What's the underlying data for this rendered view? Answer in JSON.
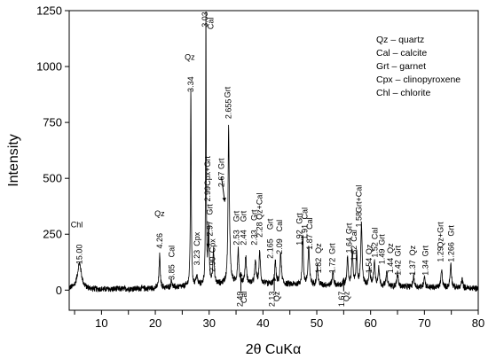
{
  "chart_data": {
    "type": "line",
    "xlabel": "2θ CuKα",
    "ylabel": "Intensity",
    "xlim": [
      4,
      80
    ],
    "ylim": [
      -90,
      1250
    ],
    "x_ticks": [
      5,
      10,
      15,
      20,
      25,
      30,
      35,
      40,
      45,
      50,
      55,
      60,
      65,
      70,
      75,
      80
    ],
    "y_ticks": [
      0,
      250,
      500,
      750,
      1000,
      1250
    ],
    "legend_position": "top-right",
    "legend": [
      "Qz – quartz",
      "Cal – calcite",
      "Grt – garnet",
      "Cpx – clinopyroxene",
      "Chl – chlorite"
    ],
    "background": {
      "points": [
        [
          4,
          5
        ],
        [
          10,
          3
        ],
        [
          20,
          8
        ],
        [
          25,
          14
        ],
        [
          30,
          22
        ],
        [
          36,
          30
        ],
        [
          42,
          26
        ],
        [
          48,
          24
        ],
        [
          55,
          20
        ],
        [
          60,
          19
        ],
        [
          70,
          12
        ],
        [
          80,
          8
        ]
      ],
      "noise_amplitude": 16
    },
    "peaks": [
      {
        "x": 5.9,
        "y": 115,
        "w": 0.9
      },
      {
        "x": 20.8,
        "y": 150,
        "w": 0.25
      },
      {
        "x": 23.0,
        "y": 35,
        "w": 0.25
      },
      {
        "x": 26.6,
        "y": 880,
        "w": 0.17
      },
      {
        "x": 27.7,
        "y": 40,
        "w": 0.35
      },
      {
        "x": 29.4,
        "y": 1240,
        "w": 0.13
      },
      {
        "x": 29.9,
        "y": 260,
        "w": 0.25
      },
      {
        "x": 30.8,
        "y": 150,
        "w": 0.3
      },
      {
        "x": 33.6,
        "y": 470,
        "w": 0.2
      },
      {
        "x": 33.7,
        "y": 300,
        "w": 0.35
      },
      {
        "x": 35.4,
        "y": 150,
        "w": 0.3
      },
      {
        "x": 36.8,
        "y": 120,
        "w": 0.3
      },
      {
        "x": 38.6,
        "y": 100,
        "w": 0.3
      },
      {
        "x": 39.4,
        "y": 140,
        "w": 0.3
      },
      {
        "x": 42.3,
        "y": 100,
        "w": 0.3
      },
      {
        "x": 43.3,
        "y": 140,
        "w": 0.3
      },
      {
        "x": 47.4,
        "y": 220,
        "w": 0.25
      },
      {
        "x": 48.5,
        "y": 170,
        "w": 0.3
      },
      {
        "x": 50.1,
        "y": 80,
        "w": 0.3
      },
      {
        "x": 53.0,
        "y": 60,
        "w": 0.3
      },
      {
        "x": 55.7,
        "y": 120,
        "w": 0.3
      },
      {
        "x": 56.6,
        "y": 150,
        "w": 0.3
      },
      {
        "x": 57.4,
        "y": 150,
        "w": 0.25
      },
      {
        "x": 58.3,
        "y": 270,
        "w": 0.3
      },
      {
        "x": 59.8,
        "y": 80,
        "w": 0.3
      },
      {
        "x": 60.7,
        "y": 110,
        "w": 0.3
      },
      {
        "x": 61.5,
        "y": 80,
        "w": 0.3
      },
      {
        "x": 63.0,
        "y": 60,
        "w": 0.3
      },
      {
        "x": 65.0,
        "y": 60,
        "w": 0.3
      },
      {
        "x": 68.0,
        "y": 50,
        "w": 0.3
      },
      {
        "x": 70.0,
        "y": 50,
        "w": 0.3
      },
      {
        "x": 73.2,
        "y": 80,
        "w": 0.3
      },
      {
        "x": 74.9,
        "y": 110,
        "w": 0.3
      },
      {
        "x": 77.0,
        "y": 40,
        "w": 0.3
      }
    ],
    "labels": [
      {
        "text": "Chl",
        "x": 5.4,
        "y": 280,
        "rot": 0
      },
      {
        "text": "15.00",
        "x": 5.9,
        "y": 205,
        "rot": -90
      },
      {
        "text": "Qz",
        "x": 20.8,
        "y": 330,
        "rot": 0
      },
      {
        "text": "4.26",
        "x": 20.8,
        "y": 255,
        "rot": -90
      },
      {
        "text": "Cal",
        "x": 23.0,
        "y": 200,
        "rot": -90
      },
      {
        "text": "3.85",
        "x": 23.0,
        "y": 115,
        "rot": -90
      },
      {
        "text": "Qz",
        "x": 26.4,
        "y": 1030,
        "rot": 0
      },
      {
        "text": "3.34",
        "x": 26.6,
        "y": 955,
        "rot": -90
      },
      {
        "text": "Cpx",
        "x": 27.7,
        "y": 260,
        "rot": -90
      },
      {
        "text": "3.23",
        "x": 27.7,
        "y": 180,
        "rot": -90
      },
      {
        "text": "Cal",
        "x": 30.3,
        "y": 1220,
        "rot": -90
      },
      {
        "text": "3.03",
        "x": 29.2,
        "y": 1245,
        "rot": -90
      },
      {
        "text": "Cpx+Grt",
        "x": 29.7,
        "y": 600,
        "rot": -90
      },
      {
        "text": "2.99",
        "x": 29.7,
        "y": 465,
        "rot": -90
      },
      {
        "text": "Grt",
        "x": 30.1,
        "y": 385,
        "rot": -90
      },
      {
        "text": "2.97",
        "x": 30.1,
        "y": 310,
        "rot": -90
      },
      {
        "text": "Cpx",
        "x": 30.6,
        "y": 230,
        "rot": -90
      },
      {
        "text": "2.90",
        "x": 30.6,
        "y": 150,
        "rot": -90
      },
      {
        "text": "Grt",
        "x": 32.3,
        "y": 590,
        "rot": -90
      },
      {
        "text": "2.67",
        "x": 32.3,
        "y": 530,
        "rot": -90
      },
      {
        "text": "Grt",
        "x": 33.4,
        "y": 910,
        "rot": -90
      },
      {
        "text": "2.655",
        "x": 33.6,
        "y": 855,
        "rot": -90
      },
      {
        "text": "Grt",
        "x": 35.1,
        "y": 355,
        "rot": -90
      },
      {
        "text": "2.53",
        "x": 35.1,
        "y": 270,
        "rot": -90
      },
      {
        "text": "Grt",
        "x": 36.4,
        "y": 355,
        "rot": -90
      },
      {
        "text": "2.44",
        "x": 36.4,
        "y": 270,
        "rot": -90
      },
      {
        "text": "Grt",
        "x": 38.4,
        "y": 360,
        "rot": -90
      },
      {
        "text": "2.33",
        "x": 38.4,
        "y": 270,
        "rot": -90
      },
      {
        "text": "Qz+Cal",
        "x": 39.4,
        "y": 435,
        "rot": -90
      },
      {
        "text": "2.28",
        "x": 39.4,
        "y": 305,
        "rot": -90
      },
      {
        "text": "Grt",
        "x": 41.3,
        "y": 320,
        "rot": -90
      },
      {
        "text": "2.165",
        "x": 41.3,
        "y": 230,
        "rot": -90
      },
      {
        "text": "Cal",
        "x": 43.1,
        "y": 315,
        "rot": -90
      },
      {
        "text": "2.09",
        "x": 43.1,
        "y": 230,
        "rot": -90
      },
      {
        "text": "Grt",
        "x": 46.8,
        "y": 345,
        "rot": -90
      },
      {
        "text": "1.92",
        "x": 46.8,
        "y": 270,
        "rot": -90
      },
      {
        "text": "Cal",
        "x": 47.8,
        "y": 370,
        "rot": -90
      },
      {
        "text": "1.91",
        "x": 47.8,
        "y": 295,
        "rot": -90
      },
      {
        "text": "Cal",
        "x": 48.7,
        "y": 325,
        "rot": -90
      },
      {
        "text": "1.87",
        "x": 48.7,
        "y": 250,
        "rot": -90
      },
      {
        "text": "Qz",
        "x": 50.3,
        "y": 210,
        "rot": -90
      },
      {
        "text": "1.82",
        "x": 50.3,
        "y": 145,
        "rot": -90
      },
      {
        "text": "Grt",
        "x": 52.9,
        "y": 210,
        "rot": -90
      },
      {
        "text": "1.72",
        "x": 52.9,
        "y": 145,
        "rot": -90
      },
      {
        "text": "Grt",
        "x": 56.0,
        "y": 300,
        "rot": -90
      },
      {
        "text": "1.64",
        "x": 56.0,
        "y": 235,
        "rot": -90
      },
      {
        "text": "Cal",
        "x": 56.9,
        "y": 270,
        "rot": -90
      },
      {
        "text": "1.62",
        "x": 56.9,
        "y": 200,
        "rot": -90
      },
      {
        "text": "Grt+Cal",
        "x": 57.8,
        "y": 470,
        "rot": -90
      },
      {
        "text": "1.58",
        "x": 57.8,
        "y": 350,
        "rot": -90
      },
      {
        "text": "Qz",
        "x": 59.7,
        "y": 205,
        "rot": -90
      },
      {
        "text": "1.54",
        "x": 59.7,
        "y": 145,
        "rot": -90
      },
      {
        "text": "Cal",
        "x": 60.8,
        "y": 280,
        "rot": -90
      },
      {
        "text": "1.52",
        "x": 60.8,
        "y": 215,
        "rot": -90
      },
      {
        "text": "Grt",
        "x": 62.1,
        "y": 250,
        "rot": -90
      },
      {
        "text": "1.49",
        "x": 62.1,
        "y": 185,
        "rot": -90
      },
      {
        "text": "Qz",
        "x": 63.7,
        "y": 210,
        "rot": -90
      },
      {
        "text": "1.44",
        "x": 63.7,
        "y": 145,
        "rot": -90
      },
      {
        "text": "Grt",
        "x": 65.1,
        "y": 200,
        "rot": -90
      },
      {
        "text": "1.42",
        "x": 65.1,
        "y": 135,
        "rot": -90
      },
      {
        "text": "Qz",
        "x": 67.8,
        "y": 200,
        "rot": -90
      },
      {
        "text": "1.37",
        "x": 67.8,
        "y": 135,
        "rot": -90
      },
      {
        "text": "Grt",
        "x": 70.2,
        "y": 200,
        "rot": -90
      },
      {
        "text": "1.34",
        "x": 70.2,
        "y": 135,
        "rot": -90
      },
      {
        "text": "Qz+Grt",
        "x": 73.0,
        "y": 305,
        "rot": -90
      },
      {
        "text": "1.29",
        "x": 73.0,
        "y": 195,
        "rot": -90
      },
      {
        "text": "Grt",
        "x": 75.0,
        "y": 290,
        "rot": -90
      },
      {
        "text": "1.266",
        "x": 75.0,
        "y": 215,
        "rot": -90
      },
      {
        "text": "2.49",
        "x": 35.7,
        "y": -5,
        "rot": -90
      },
      {
        "text": "Cal",
        "x": 36.5,
        "y": -5,
        "rot": -90
      },
      {
        "text": "2.13",
        "x": 41.7,
        "y": -5,
        "rot": -90
      },
      {
        "text": "Qz",
        "x": 42.6,
        "y": -5,
        "rot": -90
      },
      {
        "text": "1.67",
        "x": 54.6,
        "y": -5,
        "rot": -90
      },
      {
        "text": "Qz",
        "x": 55.5,
        "y": -5,
        "rot": -90
      }
    ],
    "arrows": [
      {
        "x1": 29.95,
        "y1": 255,
        "x2": 29.8,
        "y2": 190
      },
      {
        "x1": 32.3,
        "y1": 505,
        "x2": 32.9,
        "y2": 395
      },
      {
        "x1": 35.9,
        "y1": -5,
        "x2": 35.9,
        "y2": 80
      },
      {
        "x1": 42.1,
        "y1": -5,
        "x2": 42.1,
        "y2": 60
      },
      {
        "x1": 55.0,
        "y1": -5,
        "x2": 55.0,
        "y2": 55
      }
    ]
  }
}
